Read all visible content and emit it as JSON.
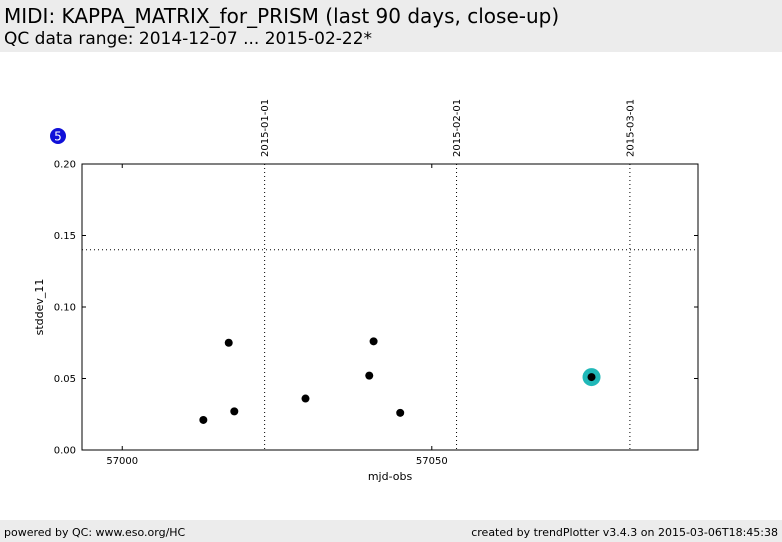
{
  "header": {
    "title": "MIDI: KAPPA_MATRIX_for_PRISM (last 90 days, close-up)",
    "subtitle": "QC data range: 2014-12-07 ... 2015-02-22*"
  },
  "footer": {
    "left": "powered by QC: www.eso.org/HC",
    "right": "created by trendPlotter v3.4.3 on 2015-03-06T18:45:38"
  },
  "badge": {
    "label": "5",
    "color": "#1010d8"
  },
  "chart_data": {
    "type": "scatter",
    "xlabel": "mjd-obs",
    "ylabel": "stddev_11",
    "xlim": [
      56993.5,
      57093
    ],
    "ylim": [
      0.0,
      0.2
    ],
    "x_ticks": [
      {
        "value": 57000,
        "label": "57000"
      },
      {
        "value": 57050,
        "label": "57050"
      }
    ],
    "y_ticks": [
      {
        "value": 0.0,
        "label": "0.00"
      },
      {
        "value": 0.05,
        "label": "0.05"
      },
      {
        "value": 0.1,
        "label": "0.10"
      },
      {
        "value": 0.15,
        "label": "0.15"
      },
      {
        "value": 0.2,
        "label": "0.20"
      }
    ],
    "date_markers": [
      {
        "value": 57023,
        "label": "2015-01-01"
      },
      {
        "value": 57054,
        "label": "2015-02-01"
      },
      {
        "value": 57082,
        "label": "2015-03-01"
      }
    ],
    "threshold": 0.14,
    "points": [
      {
        "x": 57013.1,
        "y": 0.021
      },
      {
        "x": 57017.2,
        "y": 0.075
      },
      {
        "x": 57018.1,
        "y": 0.027
      },
      {
        "x": 57029.6,
        "y": 0.036
      },
      {
        "x": 57039.9,
        "y": 0.052
      },
      {
        "x": 57040.6,
        "y": 0.076
      },
      {
        "x": 57044.9,
        "y": 0.026
      },
      {
        "x": 57075.8,
        "y": 0.051
      }
    ],
    "highlight_index": 7,
    "colors": {
      "point": "#000000",
      "highlight": "#20b8b8"
    }
  }
}
